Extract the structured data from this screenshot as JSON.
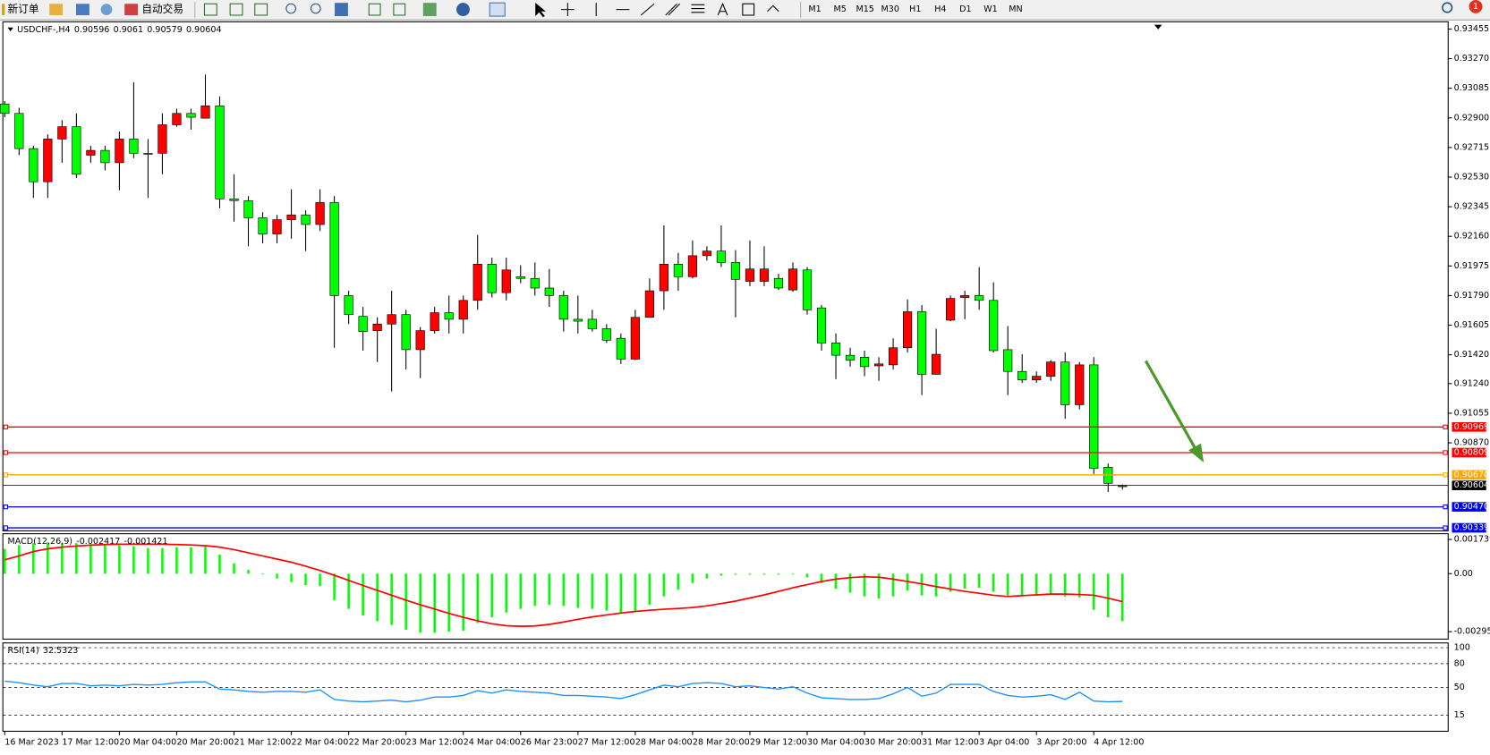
{
  "toolbar": {
    "new_order": "新订单",
    "auto_trading": "自动交易",
    "timeframes": [
      "M1",
      "M5",
      "M15",
      "M30",
      "H1",
      "H4",
      "D1",
      "W1",
      "MN"
    ],
    "notifications": 1
  },
  "chart_data": [
    {
      "type": "candlestick",
      "title": "USDCHF-,H4",
      "categories": [
        "16 Mar 2023",
        null,
        null,
        null,
        "17 Mar 12:00",
        null,
        null,
        null,
        "20 Mar 04:00",
        null,
        null,
        null,
        "20 Mar 20:00",
        null,
        null,
        null,
        "21 Mar 12:00",
        null,
        null,
        null,
        "22 Mar 04:00",
        null,
        null,
        null,
        "22 Mar 20:00",
        null,
        null,
        null,
        "23 Mar 12:00",
        null,
        null,
        null,
        "24 Mar 04:00",
        null,
        null,
        null,
        "26 Mar 23:00",
        null,
        null,
        null,
        "27 Mar 12:00",
        null,
        null,
        null,
        "28 Mar 04:00",
        null,
        null,
        null,
        "28 Mar 20:00",
        null,
        null,
        null,
        "29 Mar 12:00",
        null,
        null,
        null,
        "30 Mar 04:00",
        null,
        null,
        null,
        "30 Mar 20:00",
        null,
        null,
        null,
        "31 Mar 12:00",
        null,
        null,
        null,
        "3 Apr 04:00",
        null,
        null,
        null,
        "3 Apr 20:00",
        null,
        null,
        null,
        "4 Apr 12:00",
        null,
        null
      ],
      "open": [
        0.92987,
        0.92928,
        0.92708,
        0.92501,
        0.92768,
        0.92845,
        0.92667,
        0.92697,
        0.9262,
        0.92768,
        0.92679,
        0.92679,
        0.92857,
        0.92928,
        0.92898,
        0.92975,
        0.92394,
        0.92383,
        0.92276,
        0.92175,
        0.92264,
        0.92294,
        0.92234,
        0.92371,
        0.9179,
        0.9166,
        0.91571,
        0.91612,
        0.91671,
        0.91452,
        0.91571,
        0.91683,
        0.91642,
        0.9176,
        0.91986,
        0.91808,
        0.91908,
        0.91897,
        0.91837,
        0.9179,
        0.91642,
        0.91642,
        0.91583,
        0.91523,
        0.91393,
        0.91654,
        0.9182,
        0.91986,
        0.91908,
        0.92039,
        0.92068,
        0.91997,
        0.91879,
        0.91879,
        0.91897,
        0.91825,
        0.9195,
        0.91713,
        0.91494,
        0.91417,
        0.91405,
        0.91351,
        0.91357,
        0.91464,
        0.91689,
        0.91298,
        0.91636,
        0.91778,
        0.9179,
        0.9176,
        0.91452,
        0.91316,
        0.91263,
        0.91286,
        0.91375,
        0.91108,
        0.91357,
        0.90717,
        0.90596
      ],
      "high": [
        0.93005,
        0.92963,
        0.92726,
        0.92797,
        0.92886,
        0.92928,
        0.92726,
        0.92726,
        0.92815,
        0.93123,
        0.92768,
        0.92928,
        0.92957,
        0.92957,
        0.93171,
        0.93034,
        0.92548,
        0.92412,
        0.92311,
        0.92294,
        0.92454,
        0.92323,
        0.92454,
        0.92412,
        0.9182,
        0.91719,
        0.91654,
        0.9182,
        0.91701,
        0.91594,
        0.91719,
        0.9179,
        0.9179,
        0.92169,
        0.92027,
        0.92027,
        0.9198,
        0.91997,
        0.91956,
        0.9182,
        0.9179,
        0.91701,
        0.91612,
        0.91553,
        0.91701,
        0.91897,
        0.92228,
        0.92057,
        0.92134,
        0.92098,
        0.92228,
        0.92074,
        0.92134,
        0.92098,
        0.91926,
        0.91997,
        0.91968,
        0.91731,
        0.91553,
        0.91464,
        0.91446,
        0.91405,
        0.91523,
        0.91766,
        0.91731,
        0.91583,
        0.9179,
        0.9182,
        0.91968,
        0.91873,
        0.916,
        0.91423,
        0.91316,
        0.91387,
        0.91434,
        0.91375,
        0.91405,
        0.90741,
        0.9061
      ],
      "low": [
        0.92904,
        0.92667,
        0.924,
        0.924,
        0.9262,
        0.92525,
        0.9262,
        0.92572,
        0.92448,
        0.92649,
        0.924,
        0.92548,
        0.92845,
        0.92827,
        0.92898,
        0.92335,
        0.92252,
        0.92098,
        0.92116,
        0.92116,
        0.92145,
        0.92068,
        0.92193,
        0.91464,
        0.91612,
        0.91446,
        0.91375,
        0.91191,
        0.91328,
        0.91274,
        0.91553,
        0.91553,
        0.91553,
        0.91701,
        0.91778,
        0.9176,
        0.91867,
        0.9179,
        0.91719,
        0.91565,
        0.91553,
        0.91565,
        0.91494,
        0.91363,
        0.91387,
        0.91654,
        0.91701,
        0.9182,
        0.91897,
        0.92009,
        0.91968,
        0.91654,
        0.91849,
        0.91849,
        0.91825,
        0.91814,
        0.91671,
        0.91446,
        0.91268,
        0.91346,
        0.91286,
        0.91257,
        0.91328,
        0.91434,
        0.91168,
        0.91298,
        0.9163,
        0.91642,
        0.91701,
        0.91434,
        0.91168,
        0.91245,
        0.91245,
        0.91257,
        0.9102,
        0.91079,
        0.90676,
        0.90563,
        0.90579
      ],
      "close": [
        0.92928,
        0.92708,
        0.92501,
        0.92768,
        0.92845,
        0.92548,
        0.92697,
        0.9262,
        0.92768,
        0.92679,
        0.92679,
        0.92857,
        0.92928,
        0.92904,
        0.92975,
        0.92394,
        0.92383,
        0.92276,
        0.92175,
        0.92264,
        0.92294,
        0.92234,
        0.92371,
        0.9179,
        0.91671,
        0.91565,
        0.91612,
        0.91671,
        0.91452,
        0.91571,
        0.91683,
        0.91642,
        0.9176,
        0.91986,
        0.91808,
        0.9195,
        0.91897,
        0.91837,
        0.9179,
        0.91642,
        0.9163,
        0.91583,
        0.91511,
        0.91393,
        0.91654,
        0.9182,
        0.91986,
        0.91908,
        0.92039,
        0.92068,
        0.91997,
        0.91891,
        0.91956,
        0.91956,
        0.91837,
        0.91956,
        0.91701,
        0.91494,
        0.91417,
        0.91387,
        0.91346,
        0.91363,
        0.91464,
        0.91689,
        0.91298,
        0.91423,
        0.91772,
        0.9179,
        0.9176,
        0.91446,
        0.91316,
        0.91263,
        0.91286,
        0.91375,
        0.91108,
        0.91357,
        0.90711,
        0.90617,
        0.90604
      ],
      "up_color": "#ff0000",
      "down_color": "#00ff00",
      "wick_color": "#000000",
      "ylim": [
        0.9032,
        0.935
      ],
      "yticks": [
        0.93455,
        {
          "value": 0.9327,
          "label": "0.93270"
        },
        0.93085,
        {
          "value": 0.929,
          "label": "0.92900"
        },
        0.92715,
        {
          "value": 0.9253,
          "label": "0.92530"
        },
        0.92345,
        {
          "value": 0.9216,
          "label": "0.92160"
        },
        0.91975,
        {
          "value": 0.9179,
          "label": "0.91790"
        },
        0.91605,
        {
          "value": 0.9142,
          "label": "0.91420"
        },
        {
          "value": 0.9124,
          "label": "0.91240"
        },
        0.91055,
        {
          "value": 0.9087,
          "label": "0.90870"
        }
      ],
      "levels": [
        {
          "value": 0.90969,
          "color": "#ff0000"
        },
        {
          "value": 0.90809,
          "color": "#ff0000"
        },
        {
          "value": 0.9067,
          "label": "0.90670",
          "color": "#ffa500"
        },
        {
          "value": 0.9047,
          "label": "0.90470",
          "color": "#0000ff"
        },
        {
          "value": 0.90339,
          "color": "#0000ff"
        }
      ],
      "last_price_color": "#000000"
    },
    {
      "type": "macd",
      "title": "MACD(12,26,9)",
      "series": [
        {
          "type": "bar",
          "color": "#00ff00",
          "values": [
            0.00126,
            0.00145,
            0.00155,
            0.00159,
            0.00155,
            0.00155,
            0.0015,
            0.00145,
            0.00145,
            0.0014,
            0.0013,
            0.0013,
            0.00135,
            0.00135,
            0.0014,
            0.00097,
            0.00053,
            0.00019,
            0,
            -0.00024,
            -0.00043,
            -0.00058,
            -0.00063,
            -0.00135,
            -0.00179,
            -0.00213,
            -0.00242,
            -0.00261,
            -0.00285,
            -0.003,
            -0.003,
            -0.00295,
            -0.0029,
            -0.00251,
            -0.00222,
            -0.00198,
            -0.00179,
            -0.00164,
            -0.00159,
            -0.00164,
            -0.00174,
            -0.00179,
            -0.00188,
            -0.00203,
            -0.00188,
            -0.00159,
            -0.00116,
            -0.00082,
            -0.00048,
            -0.00024,
            -0.0001,
            -5e-05,
            -5e-05,
            -5e-05,
            -5e-05,
            0,
            -0.00019,
            -0.00048,
            -0.00077,
            -0.00097,
            -0.00116,
            -0.00126,
            -0.00116,
            -0.00087,
            -0.00111,
            -0.00116,
            -0.00092,
            -0.00077,
            -0.00072,
            -0.00092,
            -0.00111,
            -0.00111,
            -0.00111,
            -0.00106,
            -0.00116,
            -0.00121,
            -0.00184,
            -0.00222,
            -0.002417
          ]
        },
        {
          "type": "line",
          "color": "#ff0000",
          "values": [
            0.0007,
            0.0009,
            0.00112,
            0.00126,
            0.00135,
            0.0014,
            0.00145,
            0.00148,
            0.0015,
            0.0015,
            0.0015,
            0.0015,
            0.00148,
            0.00146,
            0.00142,
            0.00135,
            0.00122,
            0.00106,
            0.0009,
            0.00074,
            0.00058,
            0.00038,
            0.00016,
            -8e-05,
            -0.00034,
            -0.0006,
            -0.00085,
            -0.0011,
            -0.00135,
            -0.00158,
            -0.0018,
            -0.00202,
            -0.00222,
            -0.0024,
            -0.00255,
            -0.00265,
            -0.00268,
            -0.00266,
            -0.00258,
            -0.00246,
            -0.00232,
            -0.0022,
            -0.0021,
            -0.002,
            -0.00192,
            -0.00186,
            -0.00181,
            -0.00177,
            -0.00172,
            -0.00164,
            -0.00152,
            -0.0014,
            -0.00124,
            -0.00108,
            -0.0009,
            -0.00072,
            -0.00056,
            -0.0004,
            -0.00028,
            -0.0002,
            -0.00016,
            -0.00018,
            -0.00028,
            -0.0004,
            -0.00052,
            -0.00066,
            -0.00078,
            -0.0009,
            -0.001,
            -0.0011,
            -0.00116,
            -0.00112,
            -0.00108,
            -0.00104,
            -0.00104,
            -0.00106,
            -0.0011,
            -0.00125,
            -0.001421
          ]
        }
      ],
      "ylim": [
        -0.00333,
        0.00203
      ],
      "yticks": [
        0.001739,
        {
          "value": 0,
          "label": "0.00"
        },
        -0.00295
      ]
    },
    {
      "type": "line",
      "title": "RSI(14)",
      "color": "#1e90ff",
      "values": [
        58,
        56,
        53,
        51,
        55,
        55,
        52,
        53,
        52,
        54,
        53,
        54,
        56,
        57,
        57,
        48,
        47,
        45,
        44,
        45,
        45,
        44,
        47,
        35,
        33,
        32,
        33,
        34,
        32,
        34,
        38,
        38,
        40,
        46,
        43,
        47,
        45,
        44,
        43,
        40,
        40,
        39,
        38,
        36,
        41,
        47,
        53,
        51,
        55,
        56,
        55,
        51,
        52,
        50,
        48,
        51,
        43,
        37,
        36,
        35,
        35,
        36,
        42,
        50,
        39,
        43,
        54,
        54,
        54,
        45,
        40,
        38,
        39,
        41,
        35,
        44,
        33,
        32,
        32.5323
      ],
      "ylim": [
        -5,
        106
      ],
      "yticks": [
        100,
        80,
        50,
        15
      ]
    }
  ]
}
